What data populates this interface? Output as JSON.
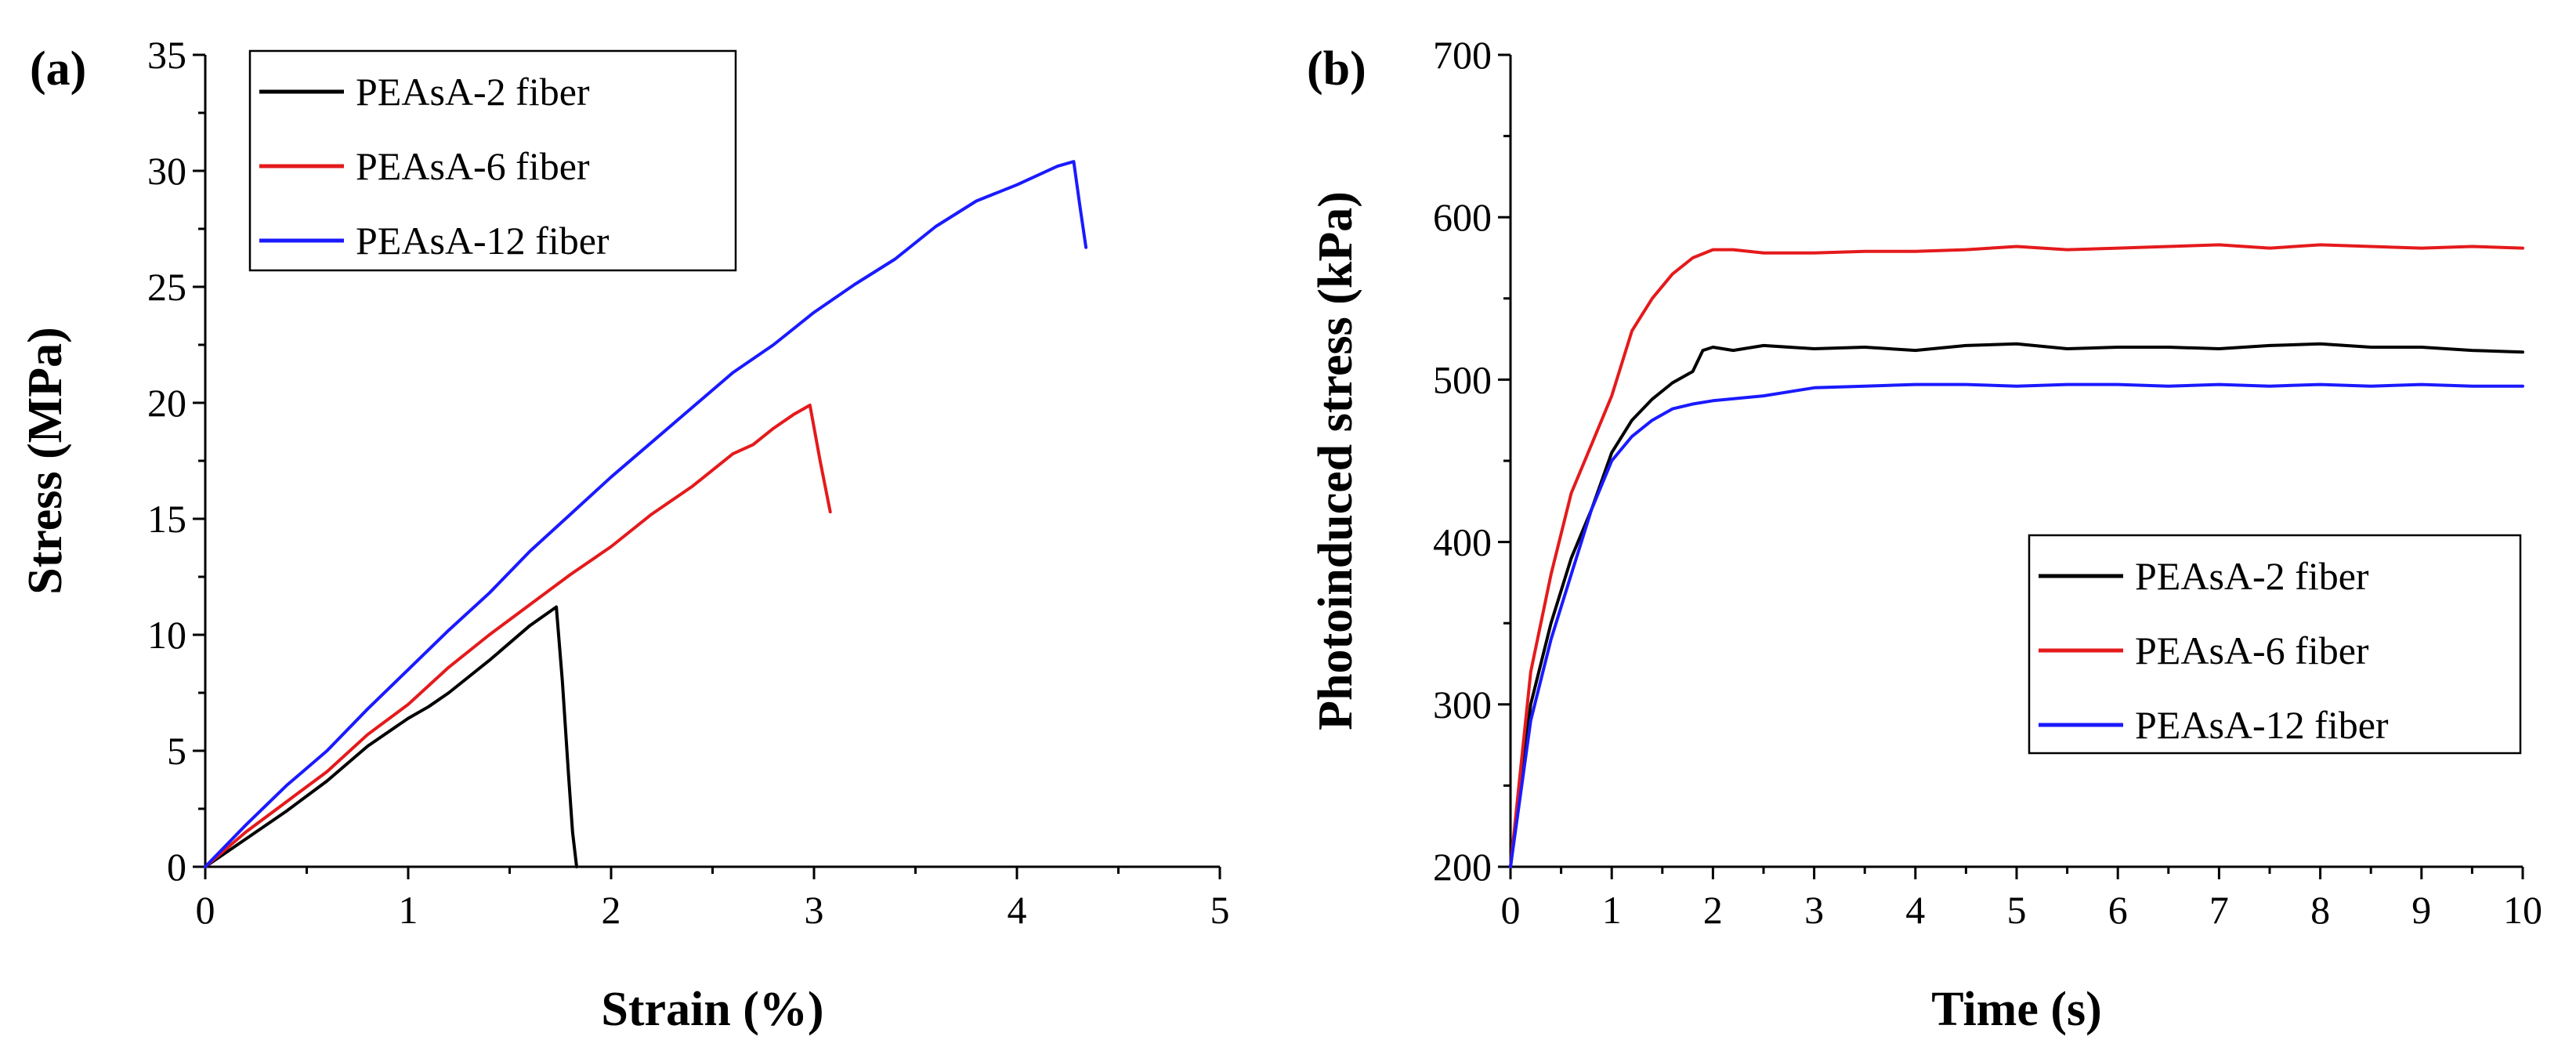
{
  "chart_data": [
    {
      "panel_label": "(a)",
      "type": "line",
      "title": "",
      "xlabel": "Strain (%)",
      "ylabel": "Stress (MPa)",
      "xlim": [
        0,
        5
      ],
      "ylim": [
        0,
        35
      ],
      "xticks": [
        "0",
        "1",
        "2",
        "3",
        "4",
        "5"
      ],
      "yticks": [
        "0",
        "5",
        "10",
        "15",
        "20",
        "25",
        "30",
        "35"
      ],
      "legend_position": "top-left",
      "series": [
        {
          "name": "PEAsA-2 fiber",
          "color": "#000000",
          "x": [
            0,
            0.2,
            0.4,
            0.6,
            0.8,
            1.0,
            1.1,
            1.2,
            1.4,
            1.6,
            1.73,
            1.76,
            1.79,
            1.81,
            1.83
          ],
          "y": [
            0,
            1.2,
            2.4,
            3.7,
            5.2,
            6.4,
            6.9,
            7.5,
            8.9,
            10.4,
            11.2,
            8.0,
            4.0,
            1.5,
            0
          ]
        },
        {
          "name": "PEAsA-6 fiber",
          "color": "#e41a1c",
          "x": [
            0,
            0.2,
            0.4,
            0.6,
            0.8,
            1.0,
            1.2,
            1.4,
            1.6,
            1.8,
            2.0,
            2.2,
            2.4,
            2.6,
            2.7,
            2.8,
            2.9,
            2.98,
            3.03,
            3.08
          ],
          "y": [
            0,
            1.5,
            2.8,
            4.1,
            5.7,
            7.0,
            8.6,
            10.0,
            11.3,
            12.6,
            13.8,
            15.2,
            16.4,
            17.8,
            18.2,
            18.9,
            19.5,
            19.9,
            17.5,
            15.3
          ]
        },
        {
          "name": "PEAsA-12 fiber",
          "color": "#1a1aff",
          "x": [
            0,
            0.2,
            0.4,
            0.6,
            0.8,
            1.0,
            1.2,
            1.4,
            1.6,
            1.8,
            2.0,
            2.2,
            2.4,
            2.6,
            2.8,
            3.0,
            3.2,
            3.4,
            3.6,
            3.8,
            4.0,
            4.1,
            4.2,
            4.28,
            4.31,
            4.34
          ],
          "y": [
            0,
            1.8,
            3.5,
            5.0,
            6.8,
            8.5,
            10.2,
            11.8,
            13.6,
            15.2,
            16.8,
            18.3,
            19.8,
            21.3,
            22.5,
            23.9,
            25.1,
            26.2,
            27.6,
            28.7,
            29.4,
            29.8,
            30.2,
            30.4,
            28.5,
            26.7
          ]
        }
      ]
    },
    {
      "panel_label": "(b)",
      "type": "line",
      "title": "",
      "xlabel": "Time (s)",
      "ylabel": "Photoinduced stress (kPa)",
      "xlim": [
        0,
        10
      ],
      "ylim": [
        200,
        700
      ],
      "xticks": [
        "0",
        "1",
        "2",
        "3",
        "4",
        "5",
        "6",
        "7",
        "8",
        "9",
        "10"
      ],
      "yticks": [
        "200",
        "300",
        "400",
        "500",
        "600",
        "700"
      ],
      "legend_position": "center-right",
      "series": [
        {
          "name": "PEAsA-2 fiber",
          "color": "#000000",
          "x": [
            0,
            0.2,
            0.4,
            0.6,
            0.8,
            1.0,
            1.2,
            1.4,
            1.6,
            1.8,
            1.9,
            2.0,
            2.2,
            2.5,
            3.0,
            3.5,
            4.0,
            4.5,
            5.0,
            5.5,
            6.0,
            6.5,
            7.0,
            7.5,
            8.0,
            8.5,
            9.0,
            9.5,
            10.0
          ],
          "y": [
            200,
            300,
            350,
            390,
            420,
            455,
            475,
            488,
            498,
            505,
            518,
            520,
            518,
            521,
            519,
            520,
            518,
            521,
            522,
            519,
            520,
            520,
            519,
            521,
            522,
            520,
            520,
            518,
            517
          ]
        },
        {
          "name": "PEAsA-6 fiber",
          "color": "#e41a1c",
          "x": [
            0,
            0.2,
            0.4,
            0.6,
            0.8,
            1.0,
            1.2,
            1.4,
            1.6,
            1.8,
            2.0,
            2.2,
            2.5,
            3.0,
            3.5,
            4.0,
            4.5,
            5.0,
            5.5,
            6.0,
            6.5,
            7.0,
            7.5,
            8.0,
            8.5,
            9.0,
            9.5,
            10.0
          ],
          "y": [
            200,
            320,
            380,
            430,
            460,
            490,
            530,
            550,
            565,
            575,
            580,
            580,
            578,
            578,
            579,
            579,
            580,
            582,
            580,
            581,
            582,
            583,
            581,
            583,
            582,
            581,
            582,
            581
          ]
        },
        {
          "name": "PEAsA-12 fiber",
          "color": "#1a1aff",
          "x": [
            0,
            0.2,
            0.4,
            0.6,
            0.8,
            1.0,
            1.2,
            1.4,
            1.6,
            1.8,
            2.0,
            2.5,
            3.0,
            3.5,
            4.0,
            4.5,
            5.0,
            5.5,
            6.0,
            6.5,
            7.0,
            7.5,
            8.0,
            8.5,
            9.0,
            9.5,
            10.0
          ],
          "y": [
            200,
            290,
            340,
            380,
            420,
            450,
            465,
            475,
            482,
            485,
            487,
            490,
            495,
            496,
            497,
            497,
            496,
            497,
            497,
            496,
            497,
            496,
            497,
            496,
            497,
            496,
            496
          ]
        }
      ]
    }
  ]
}
